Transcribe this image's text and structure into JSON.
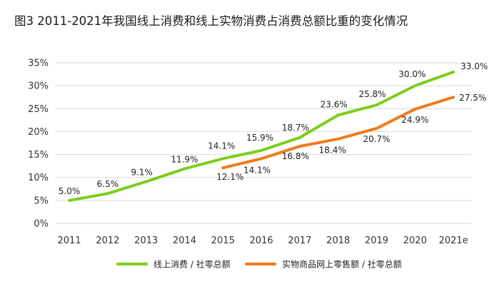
{
  "chart_data": {
    "type": "line",
    "title": "图3 2011-2021年我国线上消费和线上实物消费占消费总额比重的变化情况",
    "categories": [
      "2011",
      "2012",
      "2013",
      "2014",
      "2015",
      "2016",
      "2017",
      "2018",
      "2019",
      "2020",
      "2021e"
    ],
    "y_ticks": [
      "0%",
      "5%",
      "10%",
      "15%",
      "20%",
      "25%",
      "30%",
      "35%"
    ],
    "ylim": [
      0,
      35
    ],
    "grid": true,
    "legend_position": "bottom",
    "series": [
      {
        "name": "线上消费 / 社零总额",
        "color": "#7ccd1e",
        "values": [
          5.0,
          6.5,
          9.1,
          11.9,
          14.1,
          15.9,
          18.7,
          23.6,
          25.8,
          30.0,
          33.0
        ],
        "labels": [
          "5.0%",
          "6.5%",
          "9.1%",
          "11.9%",
          "14.1%",
          "15.9%",
          "18.7%",
          "23.6%",
          "25.8%",
          "30.0%",
          "33.0%"
        ]
      },
      {
        "name": "实物商品网上零售额 / 社零总额",
        "color": "#f07a1e",
        "values": [
          null,
          null,
          null,
          null,
          12.1,
          14.1,
          16.8,
          18.4,
          20.7,
          24.9,
          27.5
        ],
        "labels": [
          null,
          null,
          null,
          null,
          "12.1%",
          "14.1%",
          "16.8%",
          "18.4%",
          "20.7%",
          "24.9%",
          "27.5%"
        ]
      }
    ]
  }
}
